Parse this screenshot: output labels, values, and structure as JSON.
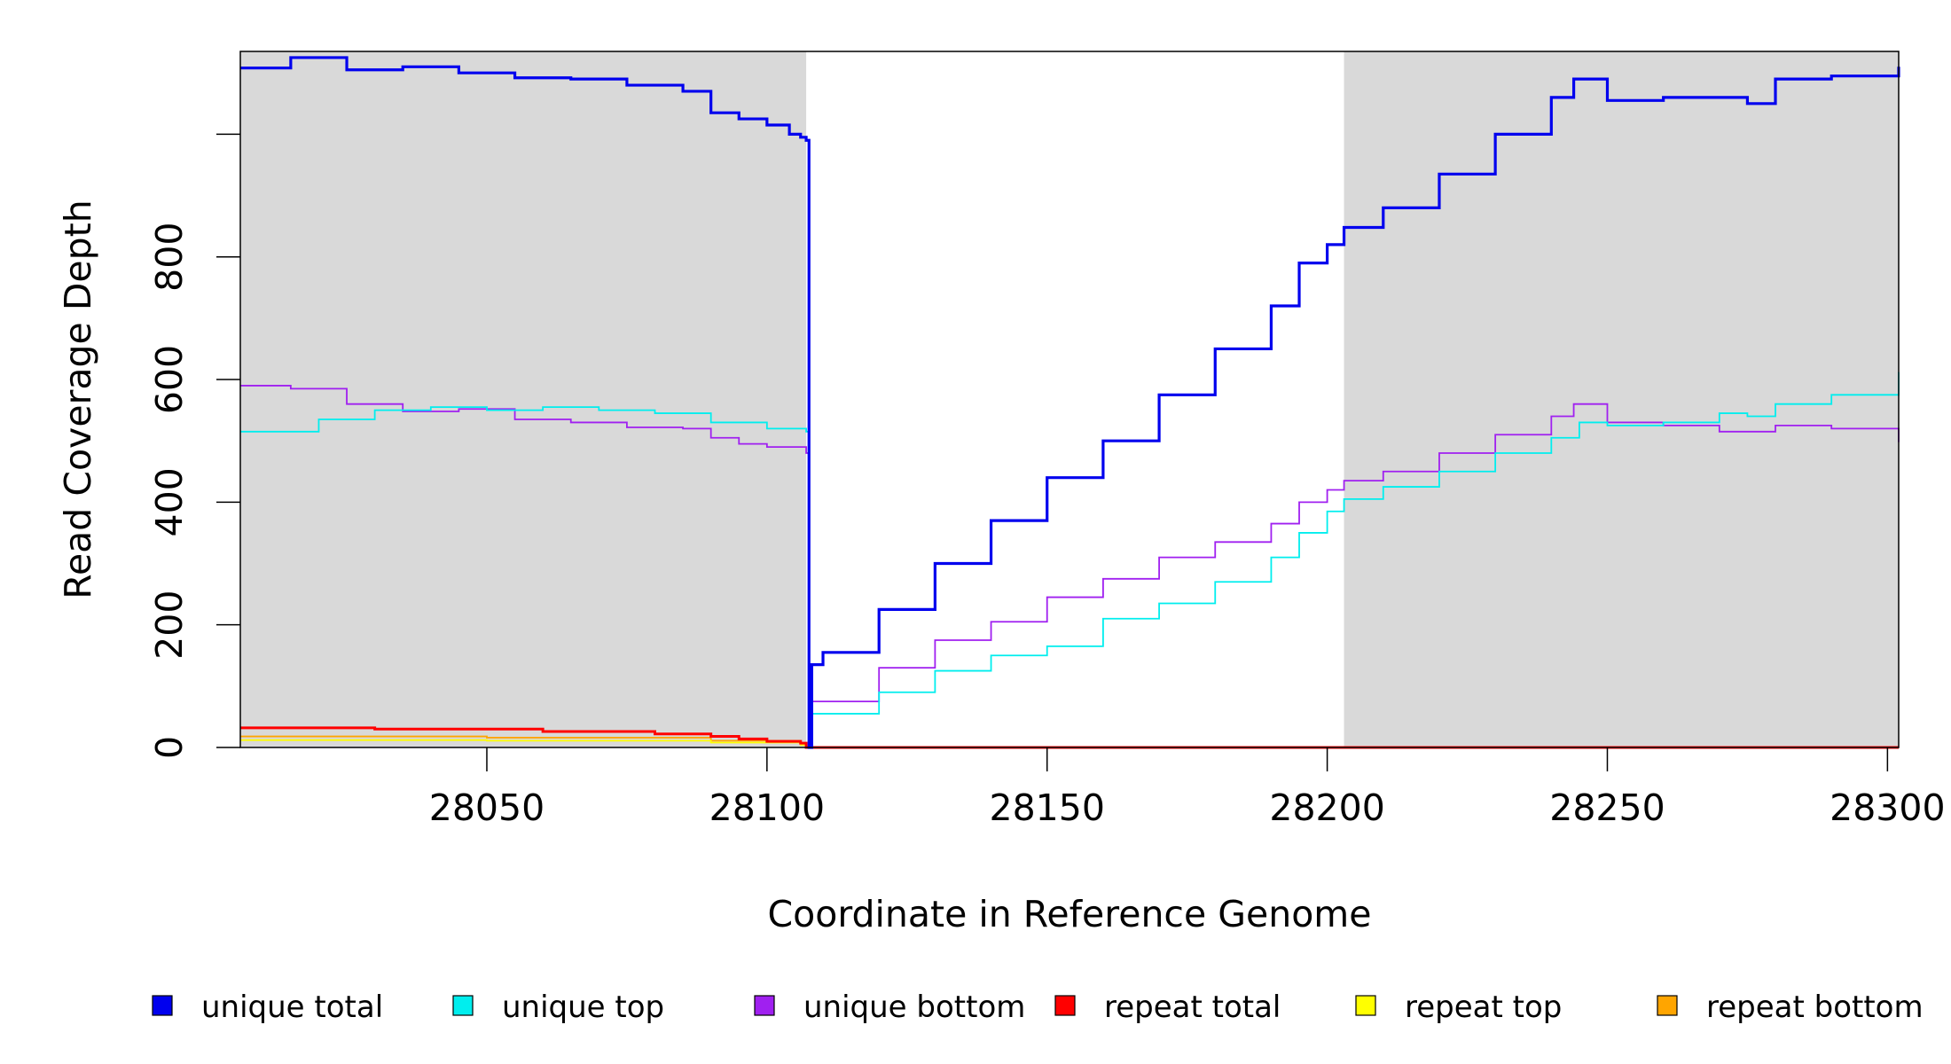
{
  "chart_data": {
    "type": "line",
    "title": "",
    "xlabel": "Coordinate in Reference Genome",
    "ylabel": "Read Coverage Depth",
    "xlim": [
      28006,
      28302
    ],
    "ylim": [
      0,
      1135
    ],
    "x_ticks": [
      28050,
      28100,
      28150,
      28200,
      28250,
      28300
    ],
    "y_ticks": [
      0,
      200,
      400,
      600,
      800
    ],
    "grid": false,
    "legend": "bottom",
    "shaded_regions": [
      [
        28006,
        28107
      ],
      [
        28203,
        28302
      ]
    ],
    "series": [
      {
        "name": "unique total",
        "color": "#0000ee",
        "x": [
          28006,
          28015,
          28025,
          28035,
          28045,
          28055,
          28065,
          28075,
          28085,
          28090,
          28095,
          28100,
          28104,
          28106,
          28107,
          28107.5,
          28108,
          28110,
          28120,
          28130,
          28140,
          28150,
          28160,
          28170,
          28180,
          28190,
          28195,
          28200,
          28203,
          28210,
          28220,
          28230,
          28240,
          28244,
          28250,
          28260,
          28270,
          28275,
          28280,
          28290,
          28302
        ],
        "values": [
          1108,
          1125,
          1105,
          1110,
          1100,
          1092,
          1090,
          1080,
          1070,
          1035,
          1025,
          1015,
          1000,
          995,
          990,
          0,
          135,
          155,
          225,
          300,
          370,
          440,
          500,
          575,
          650,
          720,
          790,
          820,
          848,
          880,
          935,
          1000,
          1060,
          1090,
          1055,
          1060,
          1060,
          1050,
          1090,
          1095,
          1110
        ]
      },
      {
        "name": "unique top",
        "color": "#00eeee",
        "x": [
          28006,
          28020,
          28030,
          28040,
          28050,
          28060,
          28070,
          28080,
          28090,
          28100,
          28107,
          28107.5,
          28108,
          28120,
          28130,
          28140,
          28150,
          28160,
          28170,
          28180,
          28190,
          28195,
          28200,
          28203,
          28210,
          28220,
          28230,
          28240,
          28245,
          28250,
          28260,
          28270,
          28275,
          28280,
          28290,
          28302
        ],
        "values": [
          515,
          535,
          550,
          555,
          550,
          555,
          550,
          545,
          530,
          520,
          515,
          0,
          55,
          90,
          125,
          150,
          165,
          210,
          235,
          270,
          310,
          350,
          385,
          405,
          425,
          450,
          480,
          505,
          530,
          525,
          530,
          545,
          540,
          560,
          575,
          612
        ]
      },
      {
        "name": "unique bottom",
        "color": "#a020f0",
        "x": [
          28006,
          28015,
          28025,
          28035,
          28045,
          28055,
          28065,
          28075,
          28085,
          28090,
          28095,
          28100,
          28107,
          28107.5,
          28108,
          28120,
          28130,
          28140,
          28150,
          28160,
          28170,
          28180,
          28190,
          28195,
          28200,
          28203,
          28210,
          28220,
          28230,
          28240,
          28244,
          28250,
          28260,
          28270,
          28280,
          28290,
          28302
        ],
        "values": [
          590,
          585,
          560,
          548,
          552,
          535,
          530,
          522,
          520,
          505,
          495,
          490,
          480,
          0,
          75,
          130,
          175,
          205,
          245,
          275,
          310,
          335,
          365,
          400,
          420,
          435,
          450,
          480,
          510,
          540,
          560,
          530,
          525,
          515,
          525,
          520,
          498
        ]
      },
      {
        "name": "repeat total",
        "color": "#ff0000",
        "x": [
          28006,
          28030,
          28060,
          28080,
          28090,
          28095,
          28100,
          28106,
          28107,
          28302
        ],
        "values": [
          32,
          30,
          26,
          22,
          18,
          14,
          10,
          7,
          0,
          0
        ]
      },
      {
        "name": "repeat top",
        "color": "#ffff00",
        "x": [
          28006,
          28050,
          28090,
          28106,
          28107,
          28302
        ],
        "values": [
          12,
          11,
          8,
          4,
          0,
          0
        ]
      },
      {
        "name": "repeat bottom",
        "color": "#ffa500",
        "x": [
          28006,
          28050,
          28090,
          28106,
          28107,
          28302
        ],
        "values": [
          18,
          16,
          11,
          6,
          0,
          0
        ]
      }
    ]
  }
}
